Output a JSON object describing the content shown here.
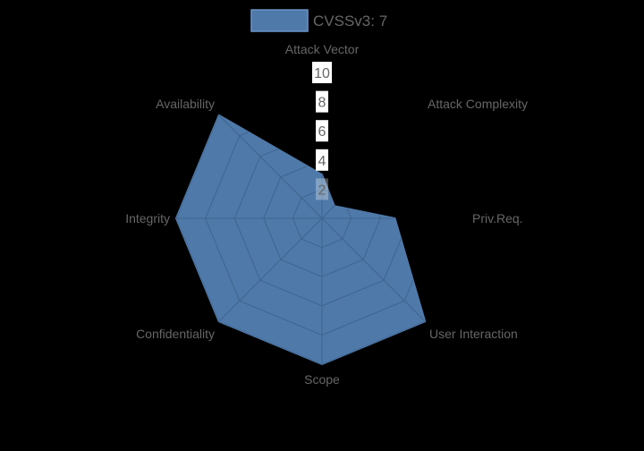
{
  "chart_data": {
    "type": "radar",
    "title": "",
    "categories": [
      "Attack Vector",
      "Attack Complexity",
      "Priv.Req.",
      "User Interaction",
      "Scope",
      "Confidentiality",
      "Integrity",
      "Availability"
    ],
    "series": [
      {
        "name": "CVSSv3: 7",
        "values": [
          3,
          1.2,
          5,
          10,
          10,
          10,
          10,
          10
        ],
        "color": "#4f79a8"
      }
    ],
    "r_ticks": [
      "2",
      "4",
      "6",
      "8",
      "10"
    ],
    "r_range": [
      0,
      10
    ],
    "grid": true,
    "legend_position": "top"
  },
  "legend": {
    "label": "CVSSv3: 7",
    "color": "#4f79a8"
  },
  "colors": {
    "background": "#000000",
    "fill": "#4f79a8",
    "grid": "#3f6590",
    "text": "#666666"
  }
}
